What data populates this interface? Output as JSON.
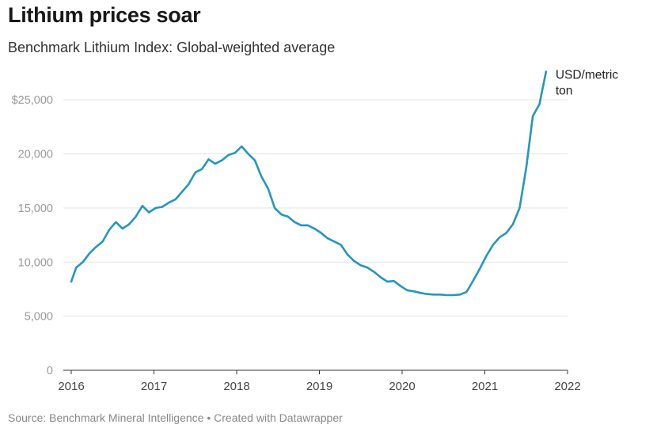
{
  "title": "Lithium prices soar",
  "subtitle": "Benchmark Lithium Index: Global-weighted average",
  "footer": {
    "source": "Source: Benchmark Mineral Intelligence",
    "separator": "•",
    "credit": "Created with Datawrapper"
  },
  "colors": {
    "line": "#2596be",
    "grid": "#e3e3e3",
    "axis": "#333333"
  },
  "chart_data": {
    "type": "line",
    "title": "Lithium prices soar",
    "subtitle": "Benchmark Lithium Index: Global-weighted average",
    "unit_label": [
      "USD/metric",
      "ton"
    ],
    "xlim": [
      2016,
      2022
    ],
    "ylim": [
      0,
      27500
    ],
    "x_ticks": [
      2016,
      2017,
      2018,
      2019,
      2020,
      2021,
      2022
    ],
    "y_ticks": [
      {
        "value": 0,
        "label": "0"
      },
      {
        "value": 5000,
        "label": "5,000"
      },
      {
        "value": 10000,
        "label": "10,000"
      },
      {
        "value": 15000,
        "label": "15,000"
      },
      {
        "value": 20000,
        "label": "20,000"
      },
      {
        "value": 25000,
        "label": "$25,000"
      }
    ],
    "grid": true,
    "series": [
      {
        "points": [
          [
            2016.0,
            8200
          ],
          [
            2016.06,
            9500
          ],
          [
            2016.14,
            10000
          ],
          [
            2016.22,
            10800
          ],
          [
            2016.3,
            11400
          ],
          [
            2016.38,
            11900
          ],
          [
            2016.46,
            13000
          ],
          [
            2016.54,
            13700
          ],
          [
            2016.62,
            13100
          ],
          [
            2016.7,
            13500
          ],
          [
            2016.78,
            14200
          ],
          [
            2016.86,
            15200
          ],
          [
            2016.94,
            14600
          ],
          [
            2017.02,
            15000
          ],
          [
            2017.1,
            15100
          ],
          [
            2017.18,
            15500
          ],
          [
            2017.26,
            15800
          ],
          [
            2017.34,
            16500
          ],
          [
            2017.42,
            17200
          ],
          [
            2017.5,
            18300
          ],
          [
            2017.58,
            18600
          ],
          [
            2017.66,
            19500
          ],
          [
            2017.74,
            19100
          ],
          [
            2017.82,
            19400
          ],
          [
            2017.9,
            19900
          ],
          [
            2017.98,
            20100
          ],
          [
            2018.06,
            20700
          ],
          [
            2018.14,
            20000
          ],
          [
            2018.22,
            19400
          ],
          [
            2018.3,
            17900
          ],
          [
            2018.38,
            16800
          ],
          [
            2018.46,
            15000
          ],
          [
            2018.54,
            14400
          ],
          [
            2018.62,
            14200
          ],
          [
            2018.7,
            13700
          ],
          [
            2018.78,
            13400
          ],
          [
            2018.86,
            13400
          ],
          [
            2018.94,
            13100
          ],
          [
            2019.02,
            12700
          ],
          [
            2019.1,
            12200
          ],
          [
            2019.18,
            11900
          ],
          [
            2019.26,
            11600
          ],
          [
            2019.34,
            10700
          ],
          [
            2019.42,
            10100
          ],
          [
            2019.5,
            9700
          ],
          [
            2019.58,
            9500
          ],
          [
            2019.66,
            9100
          ],
          [
            2019.74,
            8600
          ],
          [
            2019.82,
            8200
          ],
          [
            2019.9,
            8250
          ],
          [
            2019.98,
            7800
          ],
          [
            2020.06,
            7400
          ],
          [
            2020.14,
            7300
          ],
          [
            2020.22,
            7150
          ],
          [
            2020.3,
            7050
          ],
          [
            2020.38,
            7000
          ],
          [
            2020.46,
            7000
          ],
          [
            2020.54,
            6950
          ],
          [
            2020.62,
            6950
          ],
          [
            2020.7,
            7000
          ],
          [
            2020.78,
            7250
          ],
          [
            2020.86,
            8300
          ],
          [
            2020.94,
            9400
          ],
          [
            2021.02,
            10600
          ],
          [
            2021.1,
            11600
          ],
          [
            2021.18,
            12300
          ],
          [
            2021.26,
            12700
          ],
          [
            2021.34,
            13500
          ],
          [
            2021.42,
            15000
          ],
          [
            2021.5,
            18700
          ],
          [
            2021.58,
            23500
          ],
          [
            2021.66,
            24600
          ],
          [
            2021.74,
            27600
          ]
        ]
      }
    ]
  }
}
